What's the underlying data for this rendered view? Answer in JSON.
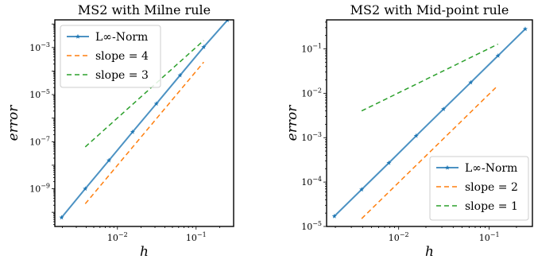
{
  "chart_data": [
    {
      "type": "line",
      "title": "MS2 with Milne rule",
      "xlabel": "h",
      "ylabel": "error",
      "xscale": "log",
      "yscale": "log",
      "xlim": [
        0.0016,
        0.3
      ],
      "ylim": [
        2.5e-11,
        0.015
      ],
      "xticks": [
        0.01,
        0.1
      ],
      "xtick_labels": [
        "10^-2",
        "10^-1"
      ],
      "yticks": [
        1e-09,
        1e-07,
        1e-05,
        0.001
      ],
      "ytick_labels": [
        "10^-9",
        "10^-7",
        "10^-5",
        "10^-3"
      ],
      "legend_position": "top-left",
      "series": [
        {
          "name": "L∞-Norm",
          "color": "#1f77b4",
          "style": "solid-star",
          "x": [
            0.00195,
            0.0039,
            0.0078,
            0.0156,
            0.03125,
            0.0625,
            0.125,
            0.25
          ],
          "y": [
            6e-11,
            1e-09,
            1.6e-08,
            2.6e-07,
            4.1e-06,
            6.6e-05,
            0.00105,
            0.0145
          ]
        },
        {
          "name": "slope = 4",
          "color": "#ff7f0e",
          "style": "dashed",
          "x": [
            0.0039,
            0.125
          ],
          "y": [
            2.3e-10,
            0.00024
          ]
        },
        {
          "name": "slope = 3",
          "color": "#2ca02c",
          "style": "dashed",
          "x": [
            0.0039,
            0.125
          ],
          "y": [
            6e-08,
            0.002
          ]
        }
      ]
    },
    {
      "type": "line",
      "title": "MS2 with Mid-point rule",
      "xlabel": "h",
      "ylabel": "error",
      "xscale": "log",
      "yscale": "log",
      "xlim": [
        0.0016,
        0.3
      ],
      "ylim": [
        1e-05,
        0.45
      ],
      "xticks": [
        0.01,
        0.1
      ],
      "xtick_labels": [
        "10^-2",
        "10^-1"
      ],
      "yticks": [
        1e-05,
        0.0001,
        0.001,
        0.01,
        0.1
      ],
      "ytick_labels": [
        "10^-5",
        "10^-4",
        "10^-3",
        "10^-2",
        "10^-1"
      ],
      "legend_position": "bottom-right",
      "series": [
        {
          "name": "L∞-Norm",
          "color": "#1f77b4",
          "style": "solid-star",
          "x": [
            0.00195,
            0.0039,
            0.0078,
            0.0156,
            0.03125,
            0.0625,
            0.125,
            0.25
          ],
          "y": [
            1.7e-05,
            6.8e-05,
            0.00027,
            0.0011,
            0.0044,
            0.0175,
            0.07,
            0.28
          ]
        },
        {
          "name": "slope = 2",
          "color": "#ff7f0e",
          "style": "dashed",
          "x": [
            0.0039,
            0.125
          ],
          "y": [
            1.5e-05,
            0.015
          ]
        },
        {
          "name": "slope = 1",
          "color": "#2ca02c",
          "style": "dashed",
          "x": [
            0.0039,
            0.125
          ],
          "y": [
            0.004,
            0.128
          ]
        }
      ]
    }
  ]
}
